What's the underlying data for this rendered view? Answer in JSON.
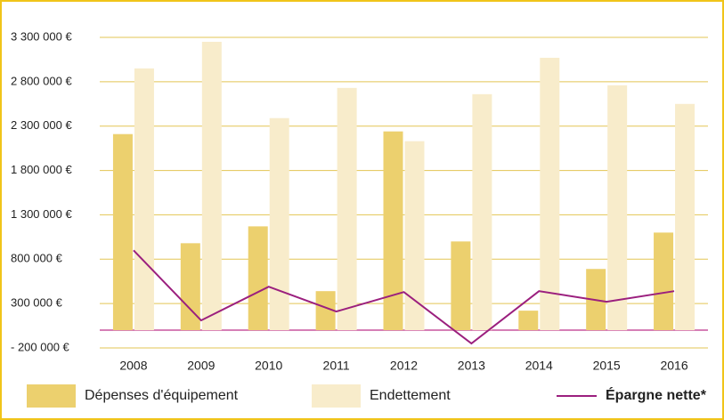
{
  "chart_data": {
    "type": "bar",
    "categories": [
      "2008",
      "2009",
      "2010",
      "2011",
      "2012",
      "2013",
      "2014",
      "2015",
      "2016"
    ],
    "series": [
      {
        "name": "Dépenses d'équipement",
        "type": "bar",
        "color": "#ecd06e",
        "values": [
          2210000,
          980000,
          1170000,
          440000,
          2240000,
          1000000,
          220000,
          690000,
          1100000
        ]
      },
      {
        "name": "Endettement",
        "type": "bar",
        "color": "#f8eccb",
        "values": [
          2950000,
          3250000,
          2390000,
          2730000,
          2130000,
          2660000,
          3070000,
          2760000,
          2550000
        ]
      },
      {
        "name": "Épargne nette*",
        "type": "line",
        "color": "#9b1f7e",
        "values": [
          900000,
          110000,
          490000,
          210000,
          430000,
          -150000,
          440000,
          320000,
          440000
        ]
      }
    ],
    "ylim": [
      -200000,
      3300000
    ],
    "yticks": [
      {
        "value": -200000,
        "label": "- 200 000 €"
      },
      {
        "value": 300000,
        "label": "300 000 €"
      },
      {
        "value": 800000,
        "label": "800 000 €"
      },
      {
        "value": 1300000,
        "label": "1 300 000 €"
      },
      {
        "value": 1800000,
        "label": "1 800 000 €"
      },
      {
        "value": 2300000,
        "label": "2 300 000 €"
      },
      {
        "value": 2800000,
        "label": "2 800 000 €"
      },
      {
        "value": 3300000,
        "label": "3 300 000 €"
      }
    ],
    "grid": true,
    "legend": "bottom"
  }
}
